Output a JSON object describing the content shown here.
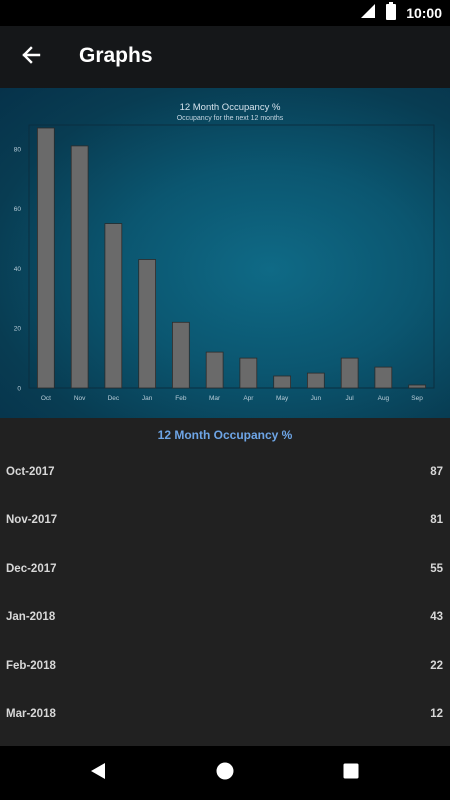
{
  "status": {
    "time": "10:00"
  },
  "header": {
    "title": "Graphs"
  },
  "chart_data": {
    "type": "bar",
    "title": "12 Month Occupancy %",
    "subtitle": "Occupancy for the next 12 months",
    "categories": [
      "Oct",
      "Nov",
      "Dec",
      "Jan",
      "Feb",
      "Mar",
      "Apr",
      "May",
      "Jun",
      "Jul",
      "Aug",
      "Sep"
    ],
    "values": [
      87,
      81,
      55,
      43,
      22,
      12,
      10,
      4,
      5,
      10,
      7,
      1
    ],
    "ylim": [
      0,
      88
    ],
    "yticks": [
      0,
      20,
      40,
      60,
      80
    ],
    "bar_color": "#6a6a6a",
    "grid": false
  },
  "table": {
    "title": "12 Month Occupancy %",
    "rows": [
      {
        "label": "Oct-2017",
        "value": "87"
      },
      {
        "label": "Nov-2017",
        "value": "81"
      },
      {
        "label": "Dec-2017",
        "value": "55"
      },
      {
        "label": "Jan-2018",
        "value": "43"
      },
      {
        "label": "Feb-2018",
        "value": "22"
      },
      {
        "label": "Mar-2018",
        "value": "12"
      }
    ]
  },
  "icons": {
    "back": "arrow-left-icon",
    "signal": "signal-icon",
    "battery": "battery-icon",
    "nav_back": "triangle-back-icon",
    "nav_home": "circle-home-icon",
    "nav_recents": "square-recents-icon"
  }
}
